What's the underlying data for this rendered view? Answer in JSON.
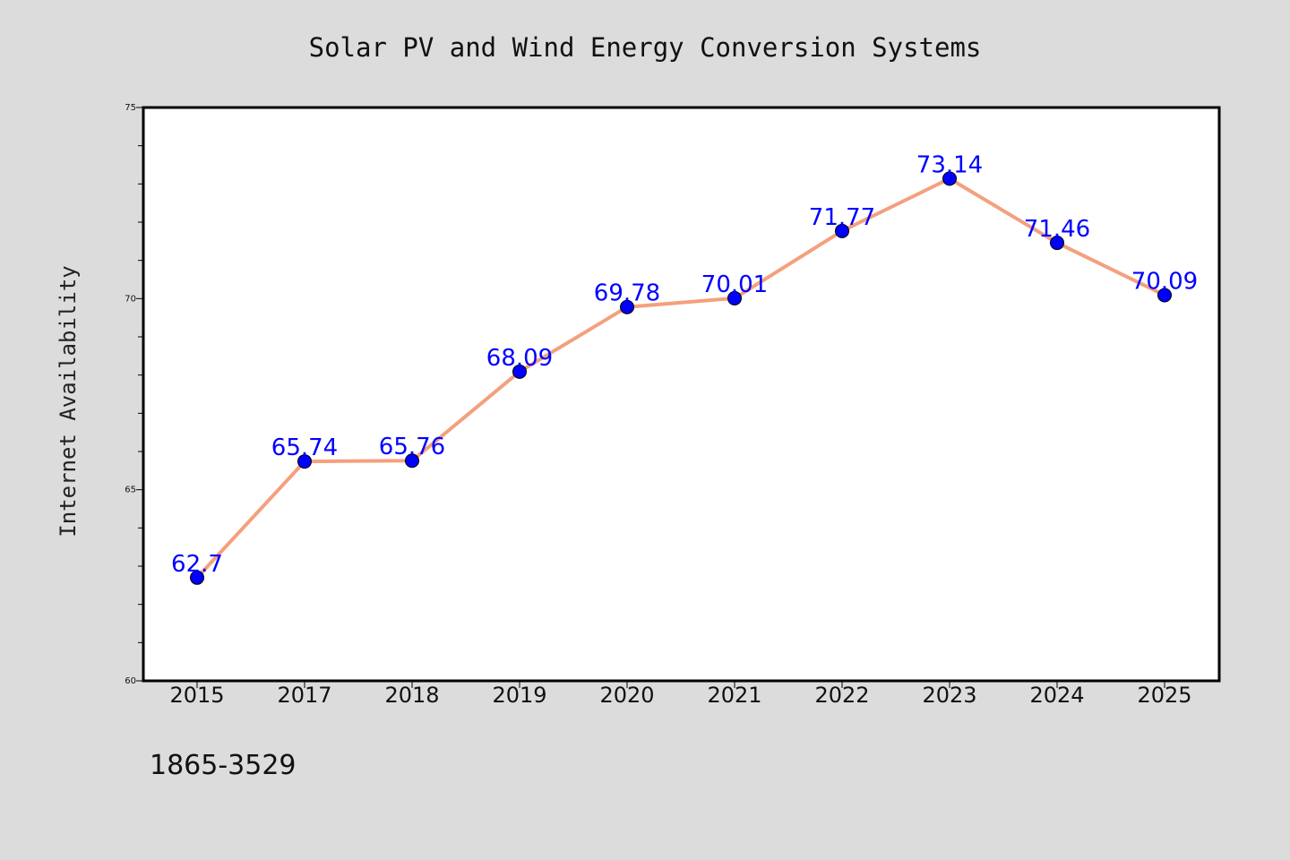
{
  "chart_data": {
    "type": "line",
    "title": "Solar PV and Wind Energy Conversion Systems",
    "xlabel": "",
    "ylabel": "Internet Availability",
    "categories": [
      "2015",
      "2017",
      "2018",
      "2019",
      "2020",
      "2021",
      "2022",
      "2023",
      "2024",
      "2025"
    ],
    "values": [
      62.7,
      65.74,
      65.76,
      68.09,
      69.78,
      70.01,
      71.77,
      73.14,
      71.46,
      70.09
    ],
    "data_labels": [
      "62.7",
      "65.74",
      "65.76",
      "68.09",
      "69.78",
      "70.01",
      "71.77",
      "73.14",
      "71.46",
      "70.09"
    ],
    "ylim": [
      60,
      75
    ],
    "yticks": [
      "60",
      "65",
      "70",
      "75"
    ],
    "grid": false,
    "line_color": "#f4a07e",
    "marker_color": "#0000ff",
    "label_color": "#0000ff",
    "footnote": "1865-3529"
  }
}
